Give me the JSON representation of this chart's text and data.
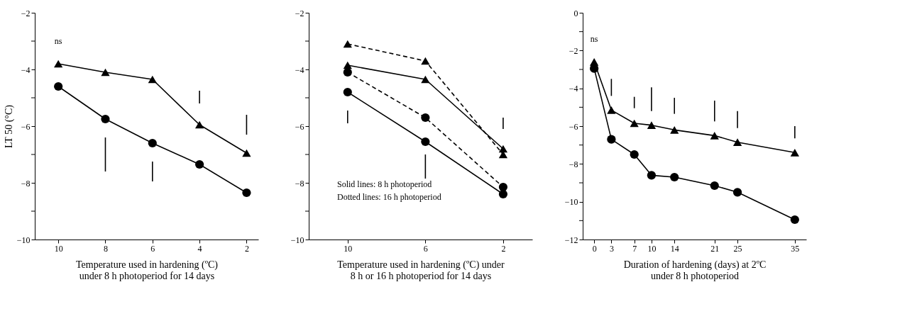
{
  "chart_data": [
    {
      "type": "line",
      "xlabel": "Temperature used in hardening (ºC)\nunder 8 h photoperiod for 14 days",
      "ylabel": "LT 50 (°C)",
      "xlim": [
        11,
        1.5
      ],
      "xticks": [
        10,
        8,
        6,
        4,
        2
      ],
      "ylim": [
        -10,
        -2
      ],
      "yticks": [
        -2,
        {
          "value": -3,
          "label": null
        },
        -4,
        {
          "value": -5,
          "label": null
        },
        -6,
        {
          "value": -7,
          "label": null
        },
        -8,
        {
          "value": -9,
          "label": null
        },
        -10
      ],
      "grid": false,
      "legend": false,
      "series": [
        {
          "color": "#000000",
          "marker": "triangle",
          "line_style": "solid",
          "x": [
            10,
            8,
            6,
            4,
            2
          ],
          "values": [
            -3.8,
            -4.1,
            -4.35,
            -5.95,
            -6.95
          ]
        },
        {
          "color": "#000000",
          "marker": "circle",
          "line_style": "solid",
          "x": [
            10,
            8,
            6,
            4,
            2
          ],
          "values": [
            -4.6,
            -5.75,
            -6.6,
            -7.35,
            -8.35
          ]
        },
        {
          "type": "bar",
          "color": "#000000",
          "x": [
            8,
            6,
            4,
            2
          ],
          "base": [
            -7.6,
            -7.95,
            -5.2,
            -6.3
          ],
          "values": [
            1.2,
            0.7,
            0.45,
            0.7
          ]
        }
      ],
      "annotations": [
        "ns"
      ]
    },
    {
      "type": "line",
      "xlabel": "Temperature used in hardening (ºC) under\n8 h or 16 h photoperiod for 14 days",
      "xlim": [
        12,
        0.5
      ],
      "xticks": [
        10,
        6,
        2
      ],
      "ylim": [
        -10,
        -2
      ],
      "yticks": [
        -2,
        {
          "value": -3,
          "label": null
        },
        -4,
        {
          "value": -5,
          "label": null
        },
        -6,
        {
          "value": -7,
          "label": null
        },
        -8,
        {
          "value": -9,
          "label": null
        },
        -10
      ],
      "grid": false,
      "legend": false,
      "series": [
        {
          "color": "#000000",
          "marker": "triangle",
          "line_style": "solid",
          "x": [
            10,
            6,
            2
          ],
          "values": [
            -3.85,
            -4.35,
            -6.8
          ]
        },
        {
          "color": "#000000",
          "marker": "triangle",
          "line_style": "dashed",
          "x": [
            10,
            6,
            2
          ],
          "values": [
            -3.1,
            -3.7,
            -7.0
          ]
        },
        {
          "color": "#000000",
          "marker": "circle",
          "line_style": "solid",
          "x": [
            10,
            6,
            2
          ],
          "values": [
            -4.8,
            -6.55,
            -8.4
          ]
        },
        {
          "color": "#000000",
          "marker": "circle",
          "line_style": "dashed",
          "x": [
            10,
            6,
            2
          ],
          "values": [
            -4.1,
            -5.7,
            -8.15
          ]
        },
        {
          "type": "bar",
          "color": "#000000",
          "x": [
            10,
            6,
            2
          ],
          "base": [
            -5.9,
            -7.85,
            -6.1
          ],
          "values": [
            0.45,
            0.85,
            0.4
          ]
        }
      ],
      "annotations": [
        "Solid lines: 8 h photoperiod",
        "Dotted lines: 16 h photoperiod"
      ]
    },
    {
      "type": "line",
      "xlabel": "Duration of hardening (days) at 2ºC\nunder 8 h photoperiod",
      "xlim": [
        -2,
        37
      ],
      "xticks": [
        0,
        3,
        7,
        10,
        14,
        21,
        25,
        35
      ],
      "ylim": [
        -12,
        0
      ],
      "yticks": [
        0,
        {
          "value": -1,
          "label": null
        },
        -2,
        {
          "value": -3,
          "label": null
        },
        -4,
        {
          "value": -5,
          "label": null
        },
        -6,
        {
          "value": -7,
          "label": null
        },
        -8,
        {
          "value": -9,
          "label": null
        },
        -10,
        {
          "value": -11,
          "label": null
        },
        -12
      ],
      "grid": false,
      "legend": false,
      "series": [
        {
          "color": "#000000",
          "marker": "triangle",
          "line_style": "solid",
          "x": [
            0,
            3,
            7,
            10,
            14,
            21,
            25,
            35
          ],
          "values": [
            -2.6,
            -5.15,
            -5.85,
            -5.95,
            -6.2,
            -6.5,
            -6.85,
            -7.4
          ]
        },
        {
          "color": "#000000",
          "marker": "circle",
          "line_style": "solid",
          "x": [
            0,
            3,
            7,
            10,
            14,
            21,
            25,
            35
          ],
          "values": [
            -2.95,
            -6.7,
            -7.5,
            -8.6,
            -8.7,
            -9.15,
            -9.5,
            -10.95
          ]
        },
        {
          "type": "bar",
          "color": "#000000",
          "x": [
            3,
            7,
            10,
            14,
            21,
            25,
            35
          ],
          "base": [
            -4.4,
            -5.05,
            -5.2,
            -5.35,
            -5.75,
            -6.1,
            -6.65
          ],
          "values": [
            0.9,
            0.6,
            1.25,
            0.85,
            1.1,
            0.9,
            0.65
          ]
        }
      ],
      "annotations": [
        "ns"
      ]
    }
  ]
}
